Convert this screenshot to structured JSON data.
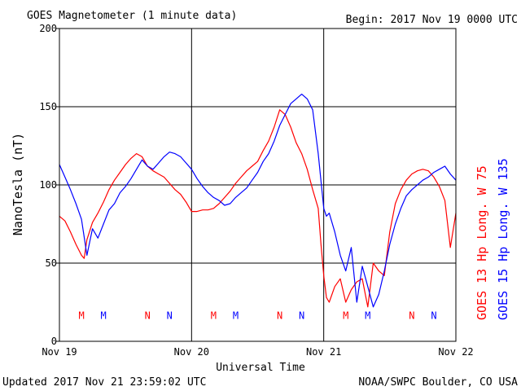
{
  "header": {
    "title": "GOES Magnetometer (1 minute data)",
    "begin": "Begin:  2017 Nov 19 0000 UTC"
  },
  "footer": {
    "updated": "Updated 2017 Nov 21 23:59:02 UTC",
    "source": "NOAA/SWPC Boulder, CO USA"
  },
  "colors": {
    "goes13": "#ff0000",
    "goes15": "#0000ff",
    "axis": "#000000"
  },
  "chart_data": {
    "type": "line",
    "title": "GOES Magnetometer (1 minute data)",
    "xlabel": "Universal Time",
    "ylabel": "NanoTesla (nT)",
    "xlim": [
      0,
      72
    ],
    "x_unit": "hours since 2017 Nov 19 0000 UTC",
    "ylim": [
      0,
      200
    ],
    "y_ticks": [
      0,
      50,
      100,
      150,
      200
    ],
    "x_ticks": [
      {
        "x": 0,
        "label": "Nov 19"
      },
      {
        "x": 24,
        "label": "Nov 20"
      },
      {
        "x": 48,
        "label": "Nov 21"
      },
      {
        "x": 72,
        "label": "Nov 22"
      }
    ],
    "grid": true,
    "legend_position": "right-vertical",
    "series": [
      {
        "name": "GOES 13 Hp  Long. W 75",
        "color": "#ff0000",
        "x": [
          0,
          1,
          2,
          3,
          4,
          4.5,
          5,
          6,
          7,
          8,
          9,
          10,
          11,
          12,
          13,
          14,
          15,
          16,
          17,
          18,
          19,
          20,
          21,
          22,
          23,
          24,
          25,
          26,
          27,
          28,
          29,
          30,
          31,
          32,
          33,
          34,
          35,
          36,
          37,
          38,
          39,
          40,
          41,
          42,
          43,
          44,
          45,
          46,
          47,
          47.5,
          48,
          48.5,
          49,
          50,
          51,
          52,
          53,
          54,
          55,
          56,
          57,
          58,
          59,
          60,
          61,
          62,
          63,
          64,
          65,
          66,
          67,
          68,
          69,
          70,
          71,
          72
        ],
        "values": [
          80,
          77,
          70,
          62,
          55,
          53,
          65,
          76,
          82,
          89,
          97,
          103,
          108,
          113,
          117,
          120,
          118,
          112,
          109,
          107,
          105,
          101,
          97,
          94,
          89,
          83,
          83,
          84,
          84,
          85,
          88,
          92,
          96,
          101,
          105,
          109,
          112,
          115,
          122,
          128,
          137,
          148,
          145,
          137,
          127,
          120,
          110,
          97,
          85,
          62,
          42,
          28,
          25,
          35,
          40,
          25,
          33,
          38,
          40,
          22,
          50,
          45,
          42,
          70,
          88,
          97,
          103,
          107,
          109,
          110,
          109,
          105,
          99,
          90,
          60,
          82
        ]
      },
      {
        "name": "GOES 15 Hp  Long. W 135",
        "color": "#0000ff",
        "x": [
          0,
          1,
          2,
          3,
          4,
          5,
          6,
          7,
          8,
          9,
          10,
          11,
          12,
          13,
          14,
          15,
          16,
          17,
          18,
          19,
          20,
          21,
          22,
          23,
          24,
          25,
          26,
          27,
          28,
          29,
          30,
          31,
          32,
          33,
          34,
          35,
          36,
          37,
          38,
          39,
          40,
          41,
          42,
          43,
          44,
          45,
          46,
          47,
          48,
          48.5,
          49,
          50,
          51,
          52,
          53,
          54,
          55,
          56,
          57,
          58,
          59,
          60,
          61,
          62,
          63,
          64,
          65,
          66,
          67,
          68,
          69,
          70,
          71,
          72
        ],
        "values": [
          113,
          105,
          97,
          88,
          78,
          55,
          72,
          66,
          75,
          84,
          88,
          95,
          99,
          104,
          110,
          116,
          112,
          110,
          114,
          118,
          121,
          120,
          118,
          114,
          110,
          104,
          99,
          95,
          92,
          90,
          87,
          88,
          92,
          95,
          98,
          103,
          108,
          115,
          120,
          128,
          138,
          145,
          152,
          155,
          158,
          155,
          148,
          120,
          85,
          80,
          82,
          70,
          55,
          45,
          60,
          25,
          48,
          35,
          22,
          30,
          45,
          62,
          75,
          85,
          93,
          97,
          100,
          103,
          105,
          108,
          110,
          112,
          107,
          103
        ]
      }
    ],
    "annotations": [
      {
        "text": "M",
        "x": 4,
        "y": 17,
        "color": "#ff0000"
      },
      {
        "text": "M",
        "x": 8,
        "y": 17,
        "color": "#0000ff"
      },
      {
        "text": "N",
        "x": 16,
        "y": 17,
        "color": "#ff0000"
      },
      {
        "text": "N",
        "x": 20,
        "y": 17,
        "color": "#0000ff"
      },
      {
        "text": "M",
        "x": 28,
        "y": 17,
        "color": "#ff0000"
      },
      {
        "text": "M",
        "x": 32,
        "y": 17,
        "color": "#0000ff"
      },
      {
        "text": "N",
        "x": 40,
        "y": 17,
        "color": "#ff0000"
      },
      {
        "text": "N",
        "x": 44,
        "y": 17,
        "color": "#0000ff"
      },
      {
        "text": "M",
        "x": 52,
        "y": 17,
        "color": "#ff0000"
      },
      {
        "text": "M",
        "x": 56,
        "y": 17,
        "color": "#0000ff"
      },
      {
        "text": "N",
        "x": 64,
        "y": 17,
        "color": "#ff0000"
      },
      {
        "text": "N",
        "x": 68,
        "y": 17,
        "color": "#0000ff"
      }
    ]
  }
}
